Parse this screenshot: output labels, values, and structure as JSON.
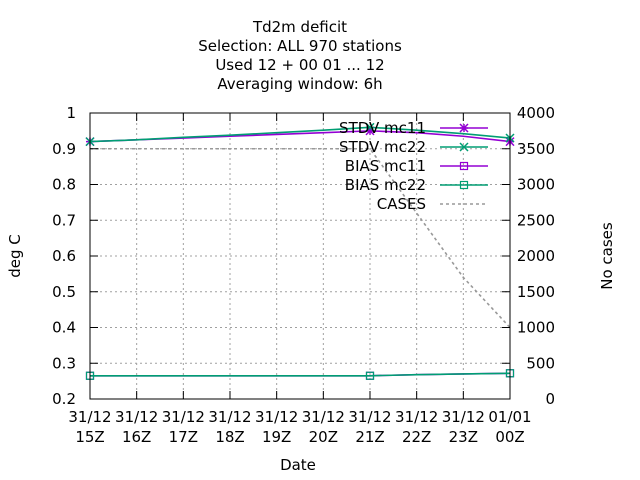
{
  "chart_data": {
    "type": "line",
    "title": [
      "Td2m deficit",
      "Selection: ALL    970 stations",
      "Used  12 + 00 01 ... 12",
      "Averaging window:  6h"
    ],
    "xlabel": "Date",
    "ylabel": "deg C",
    "y2label": "No cases",
    "x": [
      "31/12 15Z",
      "31/12 16Z",
      "31/12 17Z",
      "31/12 18Z",
      "31/12 19Z",
      "31/12 20Z",
      "31/12 21Z",
      "31/12 22Z",
      "31/12 23Z",
      "01/01 00Z"
    ],
    "x_ticks": [
      {
        "top": "31/12",
        "bottom": "15Z"
      },
      {
        "top": "31/12",
        "bottom": "16Z"
      },
      {
        "top": "31/12",
        "bottom": "17Z"
      },
      {
        "top": "31/12",
        "bottom": "18Z"
      },
      {
        "top": "31/12",
        "bottom": "19Z"
      },
      {
        "top": "31/12",
        "bottom": "20Z"
      },
      {
        "top": "31/12",
        "bottom": "21Z"
      },
      {
        "top": "31/12",
        "bottom": "22Z"
      },
      {
        "top": "31/12",
        "bottom": "23Z"
      },
      {
        "top": "01/01",
        "bottom": "00Z"
      }
    ],
    "ylim": [
      0.2,
      1.0
    ],
    "yticks": [
      "0.2",
      "0.3",
      "0.4",
      "0.5",
      "0.6",
      "0.7",
      "0.8",
      "0.9",
      "1"
    ],
    "y2lim": [
      0,
      4000
    ],
    "y2ticks": [
      "0",
      "500",
      "1000",
      "1500",
      "2000",
      "2500",
      "3000",
      "3500",
      "4000"
    ],
    "grid": true,
    "legend_position": "top-right",
    "series": [
      {
        "name": "STDV mc11",
        "axis": "y",
        "color": "#9400d3",
        "marker": "star",
        "dash": "",
        "values": [
          0.92,
          0.925,
          0.93,
          0.935,
          0.94,
          0.945,
          0.95,
          0.945,
          0.935,
          0.92
        ],
        "marked": [
          0,
          6,
          9
        ]
      },
      {
        "name": "STDV mc22",
        "axis": "y",
        "color": "#009e73",
        "marker": "x",
        "dash": "",
        "values": [
          0.92,
          0.925,
          0.932,
          0.938,
          0.945,
          0.952,
          0.96,
          0.952,
          0.942,
          0.93
        ],
        "marked": [
          0,
          6,
          9
        ]
      },
      {
        "name": "BIAS mc11",
        "axis": "y",
        "color": "#9400d3",
        "marker": "square",
        "dash": "",
        "values": [
          0.265,
          0.265,
          0.265,
          0.265,
          0.265,
          0.265,
          0.265,
          0.268,
          0.27,
          0.272
        ],
        "marked": [
          0,
          6,
          9
        ]
      },
      {
        "name": "BIAS mc22",
        "axis": "y",
        "color": "#009e73",
        "marker": "square",
        "dash": "",
        "values": [
          0.265,
          0.265,
          0.265,
          0.265,
          0.265,
          0.265,
          0.265,
          0.268,
          0.27,
          0.272
        ],
        "marked": [
          0,
          6,
          9
        ]
      },
      {
        "name": "CASES",
        "axis": "y2",
        "color": "#999999",
        "marker": "none",
        "dash": "3,3",
        "values": [
          3500,
          3500,
          3500,
          3500,
          3500,
          3500,
          3500,
          2600,
          1700,
          1000
        ],
        "marked": []
      }
    ]
  }
}
